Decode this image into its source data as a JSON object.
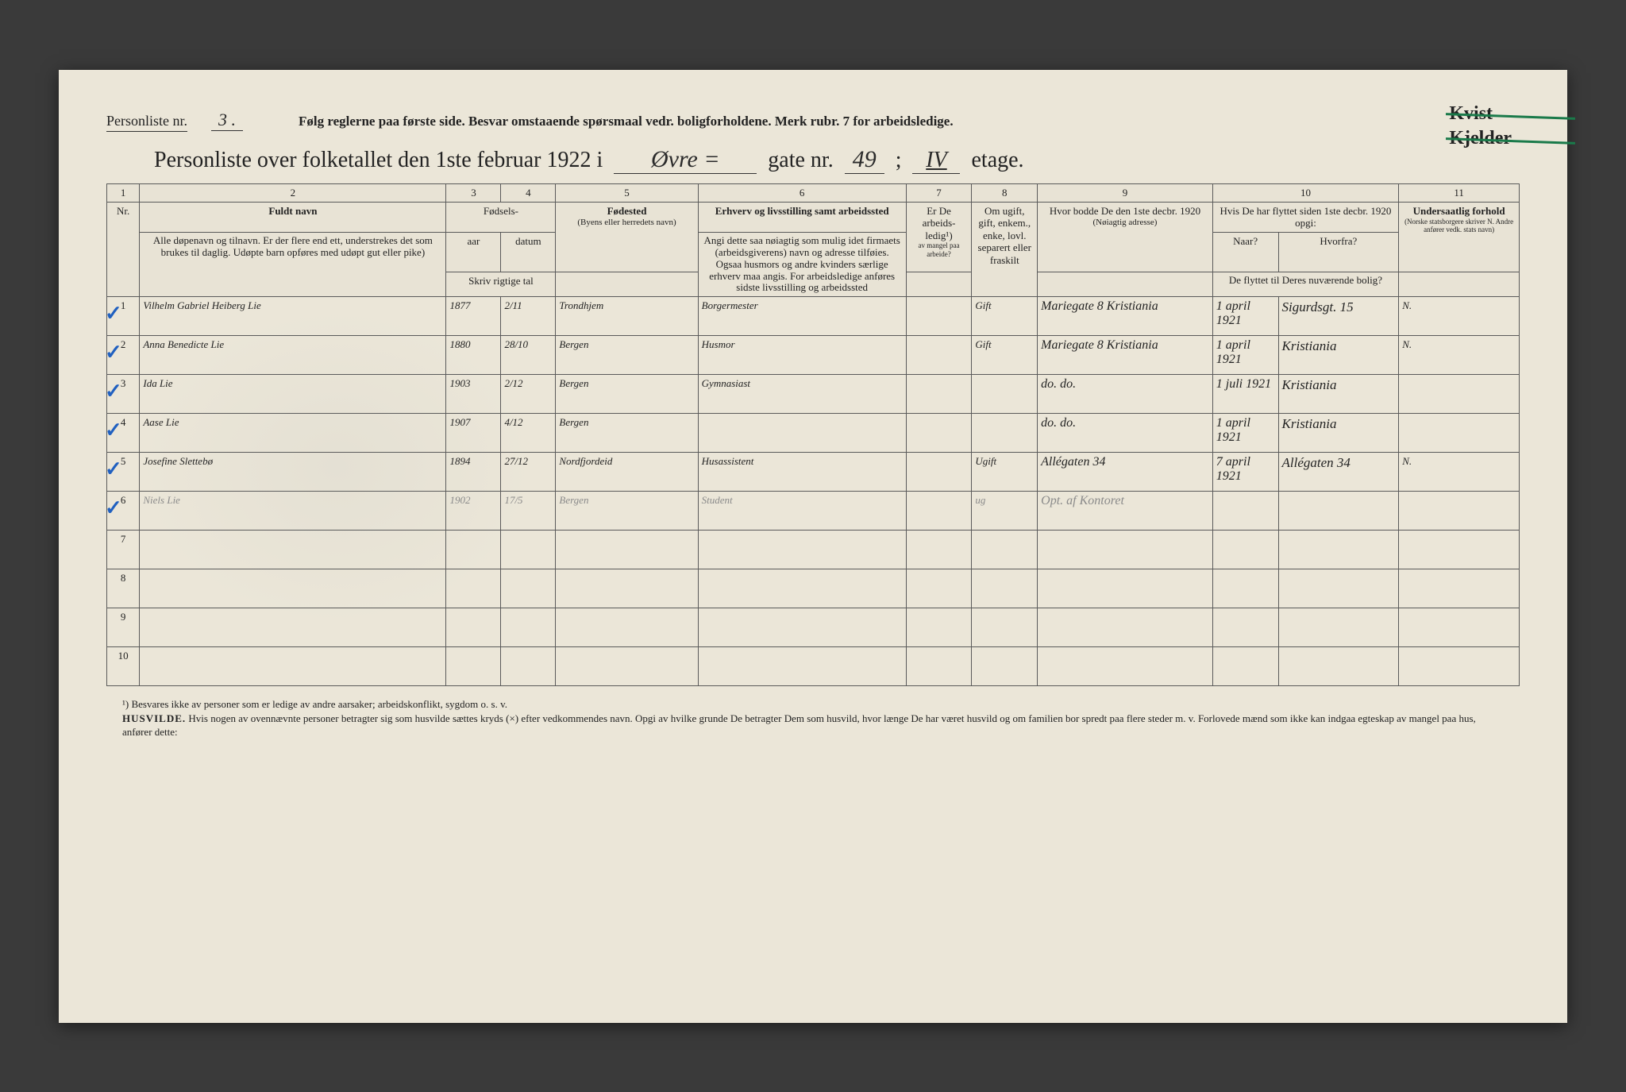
{
  "header": {
    "personliste_label": "Personliste nr.",
    "personliste_nr": "3 .",
    "instruction": "Følg reglerne paa første side.  Besvar omstaaende spørsmaal vedr. boligforholdene.  Merk rubr. 7 for arbeidsledige.",
    "kvist": "Kvist",
    "kjelder": "Kjelder"
  },
  "title": {
    "prefix": "Personliste over folketallet den 1ste februar 1922 i",
    "street": "Øvre =",
    "gate_label": "gate nr.",
    "gate_nr": "49",
    "semicolon": ";",
    "etage_nr": "IV",
    "etage_label": "etage."
  },
  "columns": {
    "c1": "1",
    "c2": "2",
    "c3": "3",
    "c4": "4",
    "c5": "5",
    "c6": "6",
    "c7": "7",
    "c8": "8",
    "c9": "9",
    "c10": "10",
    "c11": "11",
    "nr": "Nr.",
    "fuldt_navn": "Fuldt navn",
    "fuldt_navn_sub": "Alle døpenavn og tilnavn. Er der flere end ett, understrekes det som brukes til daglig. Udøpte barn opføres med udøpt gut eller pike)",
    "fodsels": "Fødsels-",
    "aar": "aar",
    "datum": "datum",
    "skriv": "Skriv rigtige tal",
    "fodested": "Fødested",
    "fodested_sub": "(Byens eller herredets navn)",
    "erhverv": "Erhverv og livsstilling samt arbeidssted",
    "erhverv_sub": "Angi dette saa nøiagtig som mulig idet firmaets (arbeidsgiverens) navn og adresse tilføies. Ogsaa husmors og andre kvinders særlige erhverv maa angis. For arbeidsledige anføres sidste livsstilling og arbeidssted",
    "ledig": "Er De arbeids-ledig¹)",
    "ledig_sub": "av mangel paa arbeide?",
    "sivil": "Om ugift, gift, enkem., enke, lovl. separert eller fraskilt",
    "bodde": "Hvor bodde De den 1ste decbr. 1920",
    "bodde_sub": "(Nøiagtig adresse)",
    "flyttet": "Hvis De har flyttet siden 1ste decbr. 1920 opgi:",
    "naar": "Naar?",
    "hvorfra": "Hvorfra?",
    "flyttet_sub": "De flyttet til Deres nuværende bolig?",
    "forhold": "Undersaatlig forhold",
    "forhold_sub": "(Norske statsborgere skriver N. Andre anfører vedk. stats navn)"
  },
  "rows": [
    {
      "n": "1",
      "navn": "Vilhelm Gabriel Heiberg Lie",
      "aar": "1877",
      "datum": "2/11",
      "fodested": "Trondhjem",
      "erhverv": "Borgermester",
      "ledig": "",
      "sivil": "Gift",
      "bodde": "Mariegate 8 Kristiania",
      "naar": "1 april 1921",
      "hvorfra": "Sigurdsgt. 15",
      "forhold": "N."
    },
    {
      "n": "2",
      "navn": "Anna Benedicte Lie",
      "aar": "1880",
      "datum": "28/10",
      "fodested": "Bergen",
      "erhverv": "Husmor",
      "ledig": "",
      "sivil": "Gift",
      "bodde": "Mariegate 8 Kristiania",
      "naar": "1 april 1921",
      "hvorfra": "Kristiania",
      "forhold": "N."
    },
    {
      "n": "3",
      "navn": "Ida Lie",
      "aar": "1903",
      "datum": "2/12",
      "fodested": "Bergen",
      "erhverv": "Gymnasiast",
      "ledig": "",
      "sivil": "",
      "bodde": "do.  do.",
      "naar": "1 juli 1921",
      "hvorfra": "Kristiania",
      "forhold": ""
    },
    {
      "n": "4",
      "navn": "Aase Lie",
      "aar": "1907",
      "datum": "4/12",
      "fodested": "Bergen",
      "erhverv": "",
      "ledig": "",
      "sivil": "",
      "bodde": "do.  do.",
      "naar": "1 april 1921",
      "hvorfra": "Kristiania",
      "forhold": ""
    },
    {
      "n": "5",
      "navn": "Josefine Slettebø",
      "aar": "1894",
      "datum": "27/12",
      "fodested": "Nordfjordeid",
      "erhverv": "Husassistent",
      "ledig": "",
      "sivil": "Ugift",
      "bodde": "Allégaten 34",
      "naar": "7 april 1921",
      "hvorfra": "Allégaten 34",
      "forhold": "N."
    },
    {
      "n": "6",
      "navn": "Niels Lie",
      "aar": "1902",
      "datum": "17/5",
      "fodested": "Bergen",
      "erhverv": "Student",
      "ledig": "",
      "sivil": "ug",
      "bodde": "Opt. af Kontoret",
      "naar": "",
      "hvorfra": "",
      "forhold": "",
      "faded": true
    }
  ],
  "empty_rows": [
    "7",
    "8",
    "9",
    "10"
  ],
  "checkmarks": [
    0,
    1,
    2,
    3,
    4,
    5
  ],
  "footnotes": {
    "f1": "¹) Besvares ikke av personer som er ledige av andre aarsaker; arbeidskonflikt, sygdom o. s. v.",
    "husvilde_label": "HUSVILDE.",
    "husvilde": "Hvis nogen av ovennævnte personer betragter sig som husvilde sættes kryds (×) efter vedkommendes navn. Opgi av hvilke grunde De betragter Dem som husvild, hvor længe De har været husvild og om familien bor spredt paa flere steder m. v. Forlovede mænd som ikke kan indgaa egteskap av mangel paa hus, anfører dette:"
  },
  "colors": {
    "paper": "#ebe6d8",
    "ink": "#222222",
    "script": "#2a2a2a",
    "faded": "#8a8a8a",
    "check": "#2060c0",
    "strike": "#1a7a4a"
  }
}
